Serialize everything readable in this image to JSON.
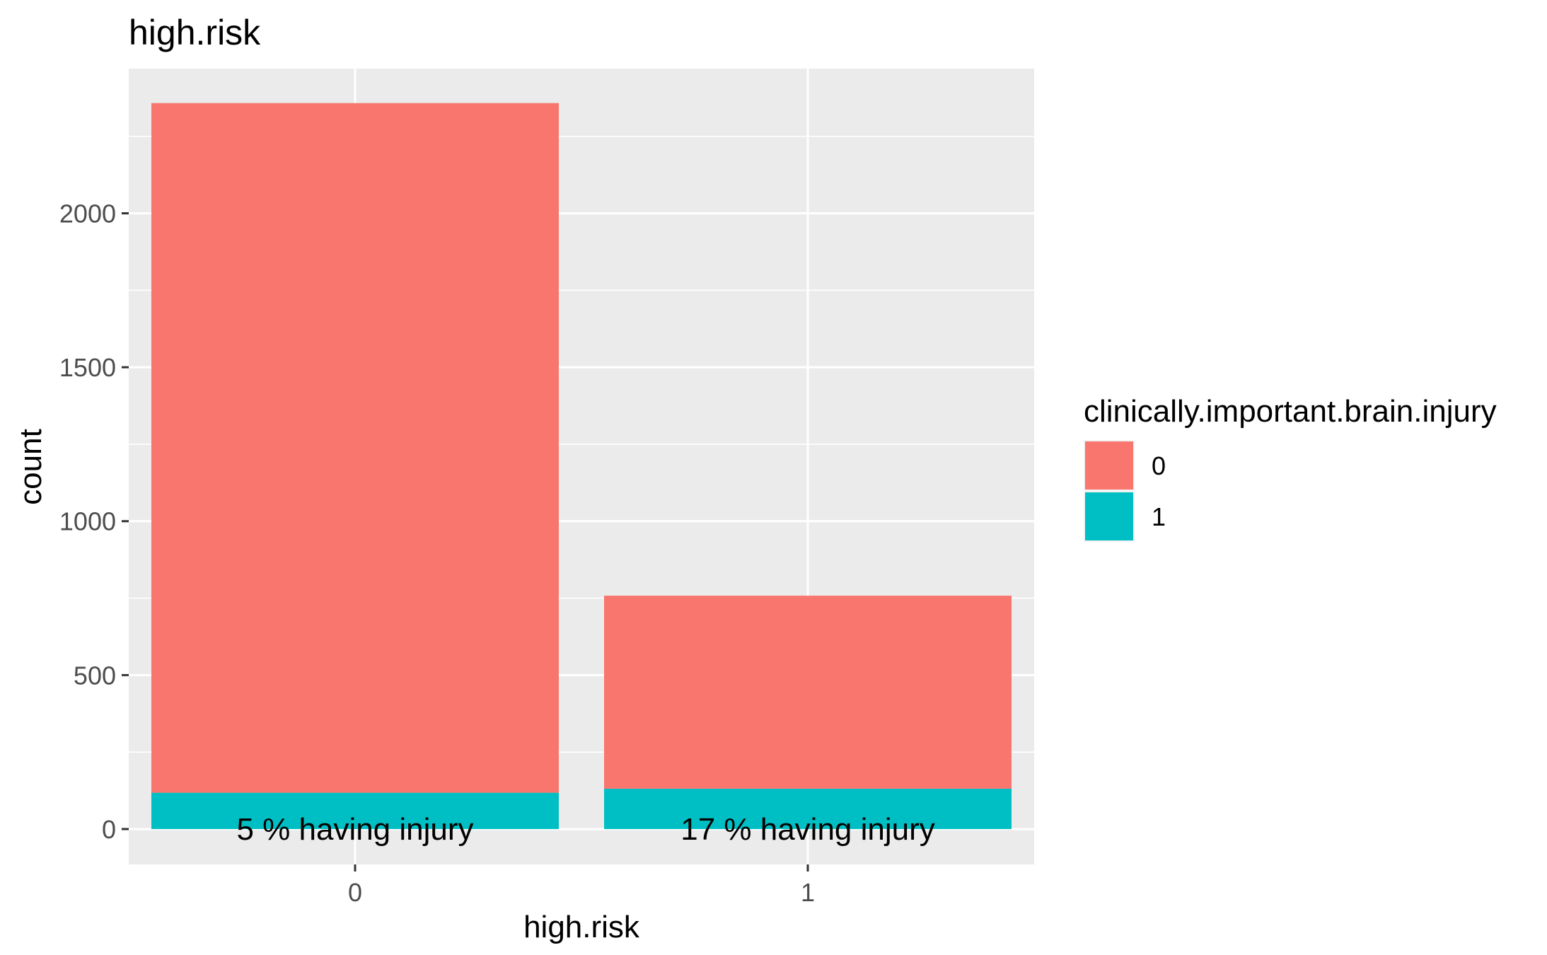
{
  "chart_data": {
    "type": "bar",
    "stacked": true,
    "title": "high.risk",
    "xlabel": "high.risk",
    "ylabel": "count",
    "categories": [
      "0",
      "1"
    ],
    "series": [
      {
        "name": "0",
        "color": "#F8766D",
        "values": [
          2240,
          627
        ]
      },
      {
        "name": "1",
        "color": "#00BFC4",
        "values": [
          118,
          131
        ]
      }
    ],
    "ylim": [
      -115,
      2470
    ],
    "yticks": [
      0,
      500,
      1000,
      1500,
      2000
    ],
    "ytick_labels": [
      "0",
      "500",
      "1000",
      "1500",
      "2000"
    ],
    "bar_labels": [
      "5 % having injury",
      "17 % having injury"
    ],
    "legend_title": "clinically.important.brain.injury",
    "legend_position": "right",
    "grid": true,
    "panel_background": "#EBEBEB",
    "grid_color": "#FFFFFF"
  }
}
